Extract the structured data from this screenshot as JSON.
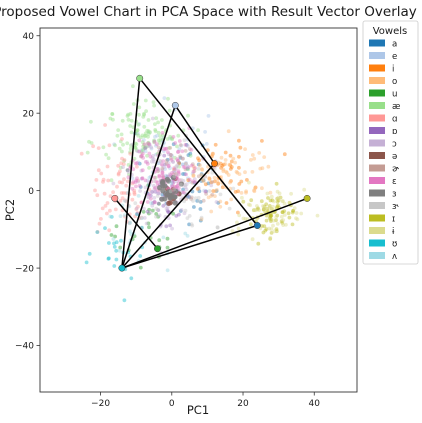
{
  "chart_data": {
    "type": "scatter",
    "title": "Proposed Vowel Chart in PCA Space with Result Vector Overlay",
    "xlabel": "PC1",
    "ylabel": "PC2",
    "xlim": [
      -37,
      52
    ],
    "ylim": [
      -52,
      42
    ],
    "x_ticks": [
      -20,
      0,
      20,
      40
    ],
    "y_ticks": [
      -40,
      -20,
      0,
      20,
      40
    ],
    "x_tick_labels": [
      "−20",
      "0",
      "20",
      "40"
    ],
    "y_tick_labels": [
      "−40",
      "−20",
      "0",
      "20",
      "40"
    ],
    "grid": false,
    "legend": {
      "title": "Vowels",
      "placement": "outside-right",
      "entries": [
        {
          "label": "a",
          "color": "#1f77b4"
        },
        {
          "label": "e",
          "color": "#aec7e8"
        },
        {
          "label": "i",
          "color": "#ff7f0e"
        },
        {
          "label": "o",
          "color": "#ffbb78"
        },
        {
          "label": "u",
          "color": "#2ca02c"
        },
        {
          "label": "æ",
          "color": "#98df8a"
        },
        {
          "label": "ɑ",
          "color": "#ff9896"
        },
        {
          "label": "ɒ",
          "color": "#9467bd"
        },
        {
          "label": "ɔ",
          "color": "#c5b0d5"
        },
        {
          "label": "ə",
          "color": "#8c564b"
        },
        {
          "label": "ɚ",
          "color": "#c49c94"
        },
        {
          "label": "ɛ",
          "color": "#e377c2"
        },
        {
          "label": "ɜ",
          "color": "#7f7f7f"
        },
        {
          "label": "ɝ",
          "color": "#c7c7c7"
        },
        {
          "label": "ɪ",
          "color": "#bcbd22"
        },
        {
          "label": "ɨ",
          "color": "#dbdb8d"
        },
        {
          "label": "ʊ",
          "color": "#17becf"
        },
        {
          "label": "ʌ",
          "color": "#9edae5"
        }
      ]
    },
    "clusters": [
      {
        "vowel": "a",
        "center": [
          3,
          3
        ],
        "spread": [
          10,
          11
        ],
        "count": 45
      },
      {
        "vowel": "e",
        "center": [
          -2,
          10
        ],
        "spread": [
          11,
          10
        ],
        "count": 55
      },
      {
        "vowel": "i",
        "center": [
          14,
          6
        ],
        "spread": [
          10,
          8
        ],
        "count": 45
      },
      {
        "vowel": "o",
        "center": [
          16,
          4
        ],
        "spread": [
          12,
          8
        ],
        "count": 70
      },
      {
        "vowel": "u",
        "center": [
          -6,
          -12
        ],
        "spread": [
          8,
          9
        ],
        "count": 25
      },
      {
        "vowel": "æ",
        "center": [
          -8,
          14
        ],
        "spread": [
          11,
          9
        ],
        "count": 130
      },
      {
        "vowel": "ɑ",
        "center": [
          -14,
          0
        ],
        "spread": [
          8,
          11
        ],
        "count": 75
      },
      {
        "vowel": "ɒ",
        "center": [
          -2,
          0
        ],
        "spread": [
          7,
          9
        ],
        "count": 35
      },
      {
        "vowel": "ɔ",
        "center": [
          -2,
          2
        ],
        "spread": [
          9,
          10
        ],
        "count": 110
      },
      {
        "vowel": "ə",
        "center": [
          0,
          0
        ],
        "spread": [
          2,
          3
        ],
        "count": 10
      },
      {
        "vowel": "ɚ",
        "center": [
          2,
          5
        ],
        "spread": [
          8,
          7
        ],
        "count": 40
      },
      {
        "vowel": "ɛ",
        "center": [
          -2,
          5
        ],
        "spread": [
          9,
          8
        ],
        "count": 120
      },
      {
        "vowel": "ɜ",
        "center": [
          -1,
          0
        ],
        "spread": [
          3,
          3
        ],
        "count": 25
      },
      {
        "vowel": "ɝ",
        "center": [
          5,
          0
        ],
        "spread": [
          12,
          10
        ],
        "count": 40
      },
      {
        "vowel": "ɪ",
        "center": [
          28,
          -6
        ],
        "spread": [
          7,
          5
        ],
        "count": 70
      },
      {
        "vowel": "ɨ",
        "center": [
          28,
          -6
        ],
        "spread": [
          9,
          6
        ],
        "count": 60
      },
      {
        "vowel": "ʊ",
        "center": [
          -15,
          -15
        ],
        "spread": [
          8,
          9
        ],
        "count": 25
      },
      {
        "vowel": "ʌ",
        "center": [
          -10,
          -8
        ],
        "spread": [
          9,
          10
        ],
        "count": 30
      }
    ],
    "vowel_markers": [
      {
        "vowel": "a",
        "x": 24,
        "y": -9,
        "color": "#1f77b4"
      },
      {
        "vowel": "i",
        "x": 12,
        "y": 7,
        "color": "#ff7f0e"
      },
      {
        "vowel": "e",
        "x": 1,
        "y": 22,
        "color": "#aec7e8"
      },
      {
        "vowel": "æ",
        "x": -9,
        "y": 29,
        "color": "#98df8a"
      },
      {
        "vowel": "ɑ",
        "x": -16,
        "y": -2,
        "color": "#ff9896"
      },
      {
        "vowel": "u",
        "x": -4,
        "y": -15,
        "color": "#2ca02c"
      },
      {
        "vowel": "ʊ",
        "x": -14,
        "y": -20,
        "color": "#17becf"
      },
      {
        "vowel": "ɪ",
        "x": 38,
        "y": -2,
        "color": "#bcbd22"
      }
    ],
    "overlay_lines": [
      [
        [
          -9,
          29
        ],
        [
          24,
          -9
        ]
      ],
      [
        [
          24,
          -9
        ],
        [
          -14,
          -20
        ]
      ],
      [
        [
          -9,
          29
        ],
        [
          -14,
          -20
        ]
      ],
      [
        [
          1,
          22
        ],
        [
          -14,
          -20
        ]
      ],
      [
        [
          12,
          7
        ],
        [
          -14,
          -20
        ]
      ],
      [
        [
          1,
          22
        ],
        [
          12,
          7
        ]
      ],
      [
        [
          -16,
          -2
        ],
        [
          -4,
          -15
        ]
      ],
      [
        [
          -14,
          -20
        ],
        [
          38,
          -2
        ]
      ]
    ]
  }
}
